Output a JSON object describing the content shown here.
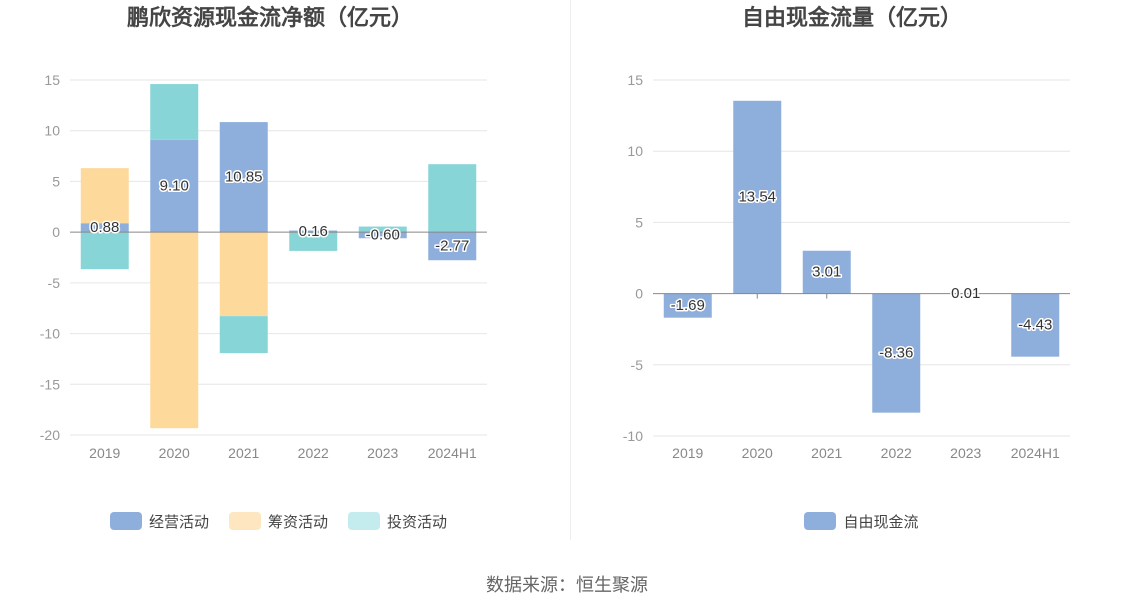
{
  "footer": {
    "source": "数据来源：恒生聚源"
  },
  "chart_data": [
    {
      "type": "bar",
      "stacked": true,
      "title": "鹏欣资源现金流净额（亿元）",
      "categories": [
        "2019",
        "2020",
        "2021",
        "2022",
        "2023",
        "2024H1"
      ],
      "ylim": [
        -20,
        15
      ],
      "yticks": [
        15,
        10,
        5,
        0,
        -5,
        -10,
        -15,
        -20
      ],
      "grid": true,
      "legend": "bottom",
      "series": [
        {
          "name": "经营活动",
          "color": "#8eaedc",
          "legend_color": "#8eaedc",
          "values": [
            0.88,
            9.1,
            10.85,
            0.16,
            -0.6,
            -2.77
          ],
          "labels": [
            "0.88",
            "9.10",
            "10.85",
            "0.16",
            "-0.60",
            "-2.77"
          ]
        },
        {
          "name": "筹资活动",
          "color": "#fdd99c",
          "legend_color": "#fee6c0",
          "values": [
            5.43,
            -19.33,
            -8.28,
            0,
            0,
            0
          ]
        },
        {
          "name": "投资活动",
          "color": "#88d5d8",
          "legend_color": "#c4ebed",
          "values": [
            -3.65,
            5.5,
            -3.65,
            -1.85,
            0.55,
            6.7
          ]
        }
      ]
    },
    {
      "type": "bar",
      "stacked": false,
      "title": "自由现金流量（亿元）",
      "categories": [
        "2019",
        "2020",
        "2021",
        "2022",
        "2023",
        "2024H1"
      ],
      "ylim": [
        -10,
        15
      ],
      "yticks": [
        15,
        10,
        5,
        0,
        -5,
        -10
      ],
      "grid": true,
      "legend": "bottom",
      "series": [
        {
          "name": "自由现金流",
          "color": "#8eaedc",
          "legend_color": "#8eaedc",
          "values": [
            -1.69,
            13.54,
            3.01,
            -8.36,
            0.01,
            -4.43
          ],
          "labels": [
            "-1.69",
            "13.54",
            "3.01",
            "-8.36",
            "0.01",
            "-4.43"
          ]
        }
      ]
    }
  ]
}
